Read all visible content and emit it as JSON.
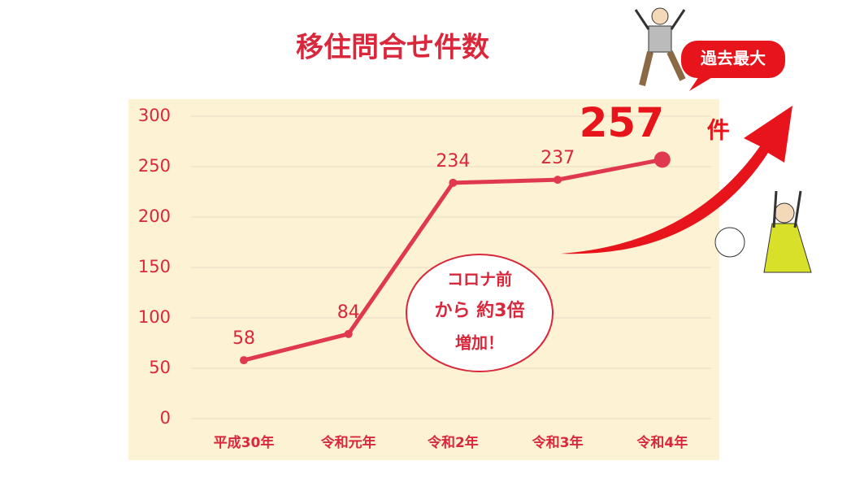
{
  "chart_data": {
    "type": "line",
    "title": "移住問合せ件数",
    "categories": [
      "平成30年",
      "令和元年",
      "令和2年",
      "令和3年",
      "令和4年"
    ],
    "values": [
      58,
      84,
      234,
      237,
      257
    ],
    "value_labels": [
      "58",
      "84",
      "234",
      "237",
      "257"
    ],
    "unit": "件",
    "color": "#e0384f",
    "ylim": [
      0,
      300
    ],
    "yticks": [
      0,
      50,
      100,
      150,
      200,
      250,
      300
    ],
    "grid": true,
    "badge": "過去最大",
    "note": [
      "コロナ前",
      "から 約3倍",
      "増加！"
    ]
  }
}
